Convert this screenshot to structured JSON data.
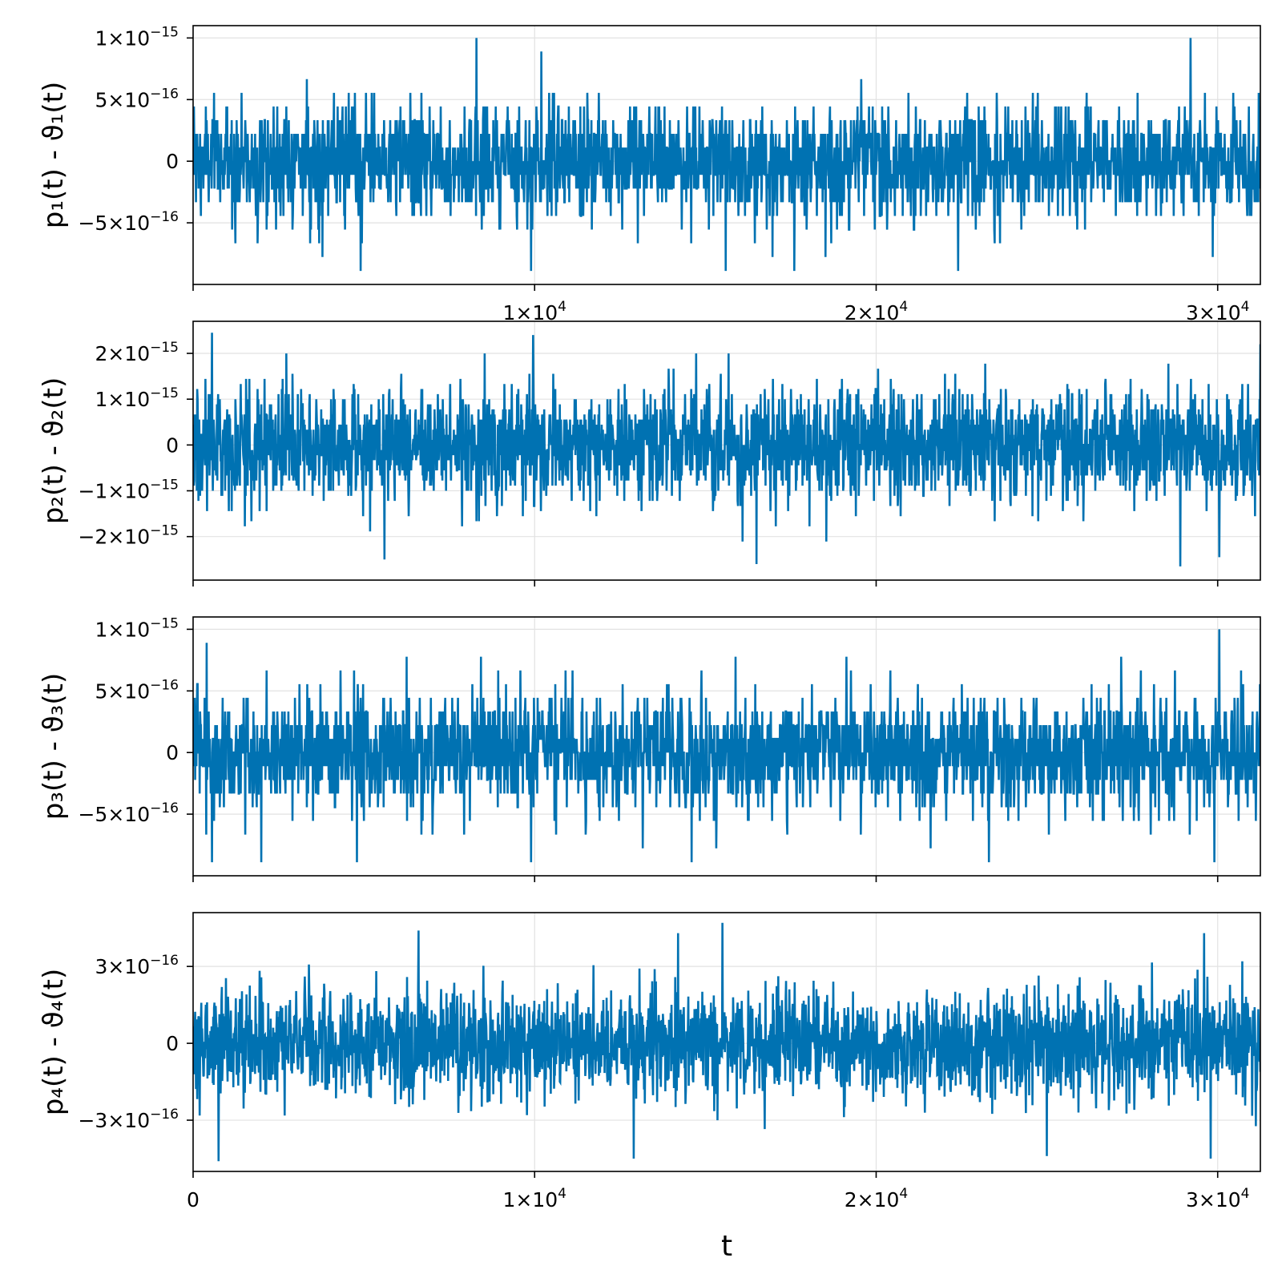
{
  "colors": {
    "series": "#0072b2"
  },
  "chart_data": [
    {
      "type": "line",
      "ylabel": "p₁(t) - ϑ₁(t)",
      "xlim": [
        0,
        31250
      ],
      "ylim": [
        -1e-15,
        1.1e-15
      ],
      "x_ticks": [
        {
          "value": 0,
          "mantissa": "",
          "exponent": ""
        },
        {
          "value": 10000,
          "mantissa": "1×10",
          "exponent": "4"
        },
        {
          "value": 20000,
          "mantissa": "2×10",
          "exponent": "4"
        },
        {
          "value": 30000,
          "mantissa": "3×10",
          "exponent": "4"
        }
      ],
      "y_ticks": [
        {
          "value": 1e-15,
          "mantissa": "1×10",
          "exponent": "−15"
        },
        {
          "value": 5e-16,
          "mantissa": "5×10",
          "exponent": "−16"
        },
        {
          "value": 0,
          "mantissa": "0",
          "exponent": ""
        },
        {
          "value": -5e-16,
          "mantissa": "−5×10",
          "exponent": "−16"
        }
      ],
      "series_style": {
        "kind": "noise",
        "quantum": 1.11e-16,
        "sigma": 2.3e-16,
        "max": 1e-15,
        "min": -8.9e-16
      },
      "peaks": [
        [
          8300,
          1e-15
        ],
        [
          29200,
          1e-15
        ],
        [
          10200,
          8.9e-16
        ],
        [
          4900,
          -8.9e-16
        ],
        [
          9900,
          -8.9e-16
        ],
        [
          15600,
          -8.9e-16
        ],
        [
          17600,
          -8.9e-16
        ],
        [
          22400,
          -8.9e-16
        ]
      ],
      "grid": true
    },
    {
      "type": "line",
      "ylabel": "p₂(t) - ϑ₂(t)",
      "xlim": [
        0,
        31250
      ],
      "ylim": [
        -2.95e-15,
        2.7e-15
      ],
      "x_ticks": [
        {
          "value": 0,
          "mantissa": "",
          "exponent": ""
        },
        {
          "value": 10000,
          "mantissa": "",
          "exponent": ""
        },
        {
          "value": 20000,
          "mantissa": "",
          "exponent": ""
        },
        {
          "value": 30000,
          "mantissa": "",
          "exponent": ""
        }
      ],
      "y_ticks": [
        {
          "value": 2e-15,
          "mantissa": "2×10",
          "exponent": "−15"
        },
        {
          "value": 1e-15,
          "mantissa": "1×10",
          "exponent": "−15"
        },
        {
          "value": 0,
          "mantissa": "0",
          "exponent": ""
        },
        {
          "value": -1e-15,
          "mantissa": "−1×10",
          "exponent": "−15"
        },
        {
          "value": -2e-15,
          "mantissa": "−2×10",
          "exponent": "−15"
        }
      ],
      "series_style": {
        "kind": "noise",
        "quantum": 1.11e-16,
        "sigma": 6.2e-16,
        "max": 2.45e-15,
        "min": -2.65e-15
      },
      "peaks": [
        [
          550,
          2.45e-15
        ],
        [
          9950,
          2.4e-15
        ],
        [
          31250,
          2.2e-15
        ],
        [
          5600,
          -2.5e-15
        ],
        [
          16500,
          -2.6e-15
        ],
        [
          28900,
          -2.65e-15
        ],
        [
          30050,
          -2.45e-15
        ]
      ],
      "grid": true
    },
    {
      "type": "line",
      "ylabel": "p₃(t) - ϑ₃(t)",
      "xlim": [
        0,
        31250
      ],
      "ylim": [
        -1e-15,
        1.1e-15
      ],
      "x_ticks": [
        {
          "value": 0,
          "mantissa": "",
          "exponent": ""
        },
        {
          "value": 10000,
          "mantissa": "",
          "exponent": ""
        },
        {
          "value": 20000,
          "mantissa": "",
          "exponent": ""
        },
        {
          "value": 30000,
          "mantissa": "",
          "exponent": ""
        }
      ],
      "y_ticks": [
        {
          "value": 1e-15,
          "mantissa": "1×10",
          "exponent": "−15"
        },
        {
          "value": 5e-16,
          "mantissa": "5×10",
          "exponent": "−16"
        },
        {
          "value": 0,
          "mantissa": "0",
          "exponent": ""
        },
        {
          "value": -5e-16,
          "mantissa": "−5×10",
          "exponent": "−16"
        }
      ],
      "series_style": {
        "kind": "noise",
        "quantum": 1.11e-16,
        "sigma": 2.4e-16,
        "max": 1e-15,
        "min": -8.9e-16
      },
      "peaks": [
        [
          30050,
          1e-15
        ],
        [
          400,
          8.9e-16
        ],
        [
          550,
          -8.9e-16
        ],
        [
          2000,
          -8.9e-16
        ],
        [
          4800,
          -8.9e-16
        ],
        [
          9900,
          -8.9e-16
        ],
        [
          14600,
          -8.9e-16
        ],
        [
          23300,
          -8.9e-16
        ],
        [
          29900,
          -8.9e-16
        ]
      ],
      "grid": true
    },
    {
      "type": "line",
      "ylabel": "p₄(t) - ϑ₄(t)",
      "xlim": [
        0,
        31250
      ],
      "ylim": [
        -5e-16,
        5.1e-16
      ],
      "x_ticks": [
        {
          "value": 0,
          "mantissa": "0",
          "exponent": ""
        },
        {
          "value": 10000,
          "mantissa": "1×10",
          "exponent": "4"
        },
        {
          "value": 20000,
          "mantissa": "2×10",
          "exponent": "4"
        },
        {
          "value": 30000,
          "mantissa": "3×10",
          "exponent": "4"
        }
      ],
      "y_ticks": [
        {
          "value": 3e-16,
          "mantissa": "3×10",
          "exponent": "−16"
        },
        {
          "value": 0,
          "mantissa": "0",
          "exponent": ""
        },
        {
          "value": -3e-16,
          "mantissa": "−3×10",
          "exponent": "−16"
        }
      ],
      "series_style": {
        "kind": "noise",
        "quantum": 0,
        "sigma": 1.05e-16,
        "max": 4.7e-16,
        "min": -4.6e-16
      },
      "peaks": [
        [
          15500,
          4.7e-16
        ],
        [
          6600,
          4.4e-16
        ],
        [
          14200,
          4.3e-16
        ],
        [
          29600,
          4.3e-16
        ],
        [
          750,
          -4.6e-16
        ],
        [
          12900,
          -4.5e-16
        ],
        [
          25000,
          -4.4e-16
        ],
        [
          29800,
          -4.5e-16
        ]
      ],
      "grid": true,
      "xlabel": "t"
    }
  ]
}
